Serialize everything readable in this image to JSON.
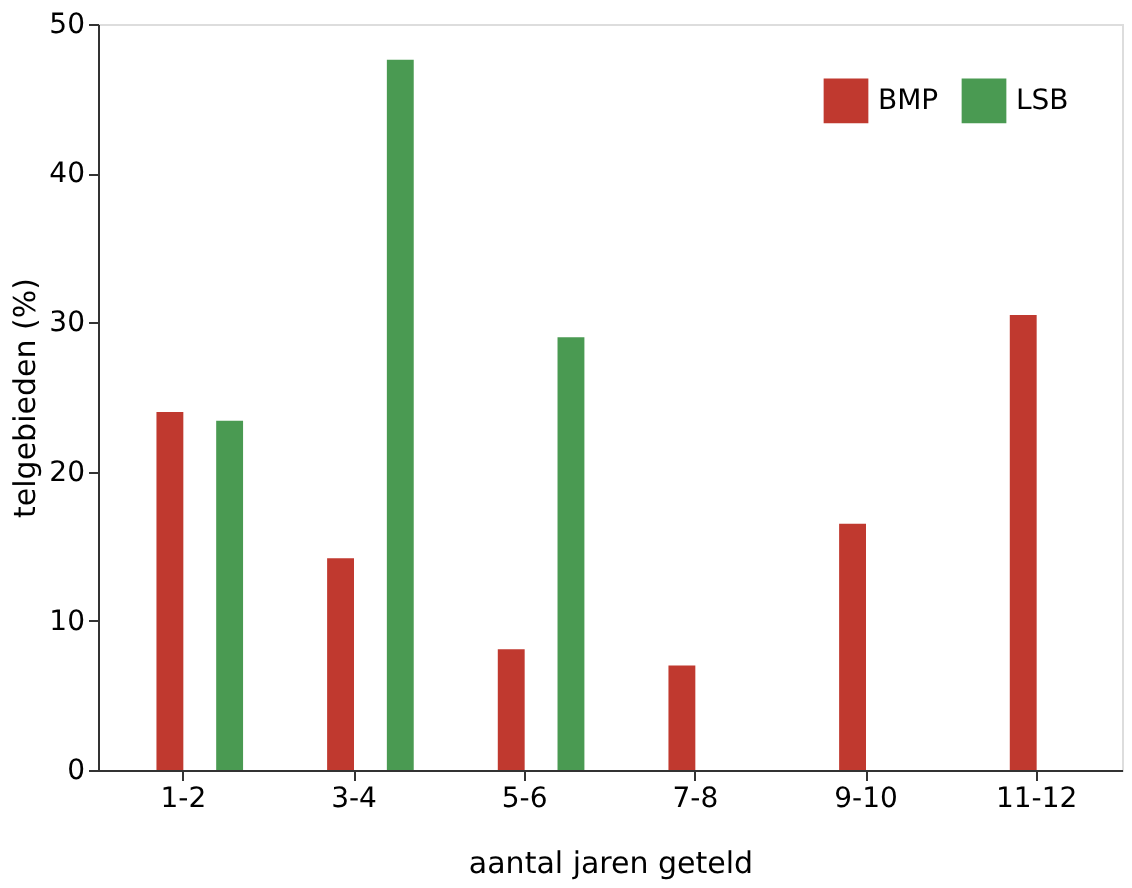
{
  "chart_data": {
    "type": "bar",
    "xlabel": "aantal jaren geteld",
    "ylabel": "telgebieden (%)",
    "categories": [
      "1-2",
      "3-4",
      "5-6",
      "7-8",
      "9-10",
      "11-12"
    ],
    "series": [
      {
        "name": "BMP",
        "color": "#c0392f",
        "values": [
          24.0,
          14.2,
          8.1,
          7.0,
          16.5,
          30.5
        ]
      },
      {
        "name": "LSB",
        "color": "#4a9a52",
        "values": [
          23.4,
          47.6,
          29.0,
          null,
          null,
          null
        ]
      }
    ],
    "ylim": [
      0,
      50
    ],
    "yticks": [
      0,
      10,
      20,
      30,
      40,
      50
    ],
    "grid": false,
    "legend": "top right"
  }
}
